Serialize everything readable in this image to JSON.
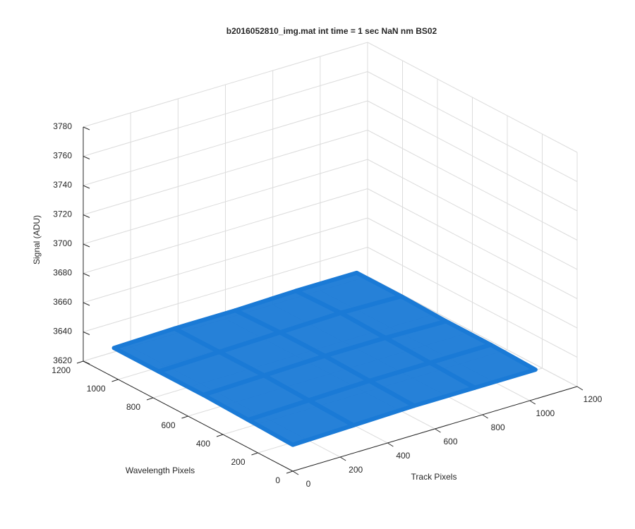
{
  "chart_data": {
    "type": "surface3d",
    "title": "b2016052810_img.mat int time = 1 sec  NaN nm BS02",
    "x_label": "Track Pixels",
    "y_label": "Wavelength Pixels",
    "z_label": "Signal (ADU)",
    "xlim": [
      0,
      1200
    ],
    "ylim": [
      0,
      1200
    ],
    "zlim": [
      3620,
      3780
    ],
    "xticks": [
      0,
      200,
      400,
      600,
      800,
      1000,
      1200
    ],
    "yticks": [
      0,
      200,
      400,
      600,
      800,
      1000,
      1200
    ],
    "zticks": [
      3620,
      3640,
      3660,
      3680,
      3700,
      3720,
      3740,
      3760,
      3780
    ],
    "grid": true,
    "color": "#1a7ad6",
    "x": [
      0,
      256,
      512,
      768,
      1024
    ],
    "y": [
      0,
      256,
      512,
      768,
      1024
    ],
    "z": [
      [
        3638,
        3639,
        3640,
        3640,
        3640
      ],
      [
        3639,
        3640,
        3641,
        3641,
        3641
      ],
      [
        3640,
        3641,
        3642,
        3642,
        3641
      ],
      [
        3640,
        3641,
        3642,
        3643,
        3642
      ],
      [
        3640,
        3641,
        3641,
        3642,
        3642
      ]
    ]
  }
}
